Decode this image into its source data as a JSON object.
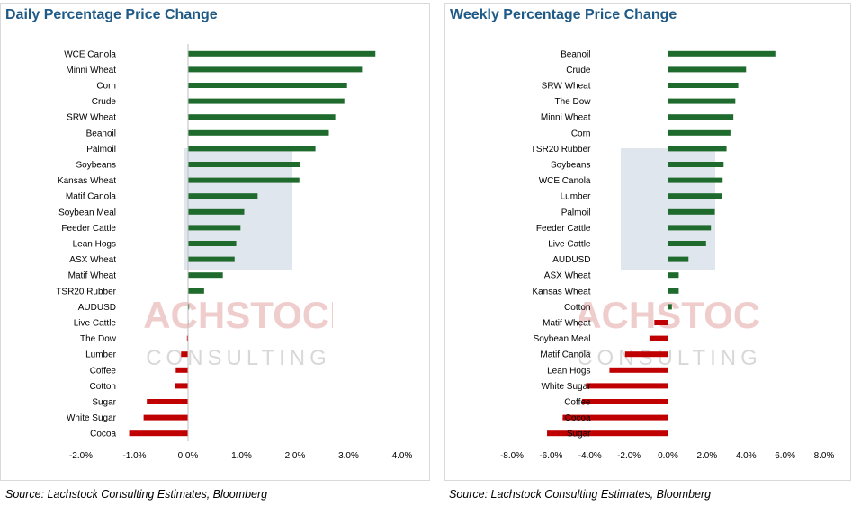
{
  "colors": {
    "positive": "#1e6b2d",
    "negative": "#c00000",
    "title": "#1f5a86",
    "gridline": "#d9d9d9",
    "watermark": "#e9b8b8",
    "watermark_logo": "#c7d1df"
  },
  "watermark": {
    "word1": "LACHSTOCK",
    "word2": "CONSULTING"
  },
  "chart_data": [
    {
      "type": "bar",
      "orientation": "horizontal",
      "title": "Daily Percentage Price Change",
      "source": "Source: Lachstock Consulting Estimates, Bloomberg",
      "categories": [
        "WCE Canola",
        "Minni Wheat",
        "Corn",
        "Crude",
        "SRW Wheat",
        "Beanoil",
        "Palmoil",
        "Soybeans",
        "Kansas Wheat",
        "Matif Canola",
        "Soybean Meal",
        "Feeder Cattle",
        "Lean Hogs",
        "ASX Wheat",
        "Matif Wheat",
        "TSR20 Rubber",
        "AUDUSD",
        "Live Cattle",
        "The Dow",
        "Lumber",
        "Coffee",
        "Cotton",
        "Sugar",
        "White Sugar",
        "Cocoa"
      ],
      "values": [
        3.5,
        3.25,
        2.97,
        2.92,
        2.75,
        2.63,
        2.38,
        2.1,
        2.08,
        1.3,
        1.05,
        0.98,
        0.9,
        0.87,
        0.65,
        0.3,
        0.02,
        0.0,
        -0.02,
        -0.13,
        -0.23,
        -0.25,
        -0.77,
        -0.83,
        -1.1
      ],
      "xlim": [
        -2.0,
        4.0
      ],
      "xticks": [
        "-2.0%",
        "-1.0%",
        "0.0%",
        "1.0%",
        "2.0%",
        "3.0%",
        "4.0%"
      ],
      "grid": false,
      "legend": "none"
    },
    {
      "type": "bar",
      "orientation": "horizontal",
      "title": "Weekly Percentage Price Change",
      "source": "Source: Lachstock Consulting Estimates, Bloomberg",
      "categories": [
        "Beanoil",
        "Crude",
        "SRW Wheat",
        "The Dow",
        "Minni Wheat",
        "Corn",
        "TSR20 Rubber",
        "Soybeans",
        "WCE Canola",
        "Lumber",
        "Palmoil",
        "Feeder Cattle",
        "Live Cattle",
        "AUDUSD",
        "ASX Wheat",
        "Kansas Wheat",
        "Cotton",
        "Matif Wheat",
        "Soybean Meal",
        "Matif Canola",
        "Lean Hogs",
        "White Sugar",
        "Coffee",
        "Cocoa",
        "Sugar"
      ],
      "values": [
        5.5,
        4.0,
        3.6,
        3.45,
        3.35,
        3.2,
        3.0,
        2.85,
        2.8,
        2.75,
        2.4,
        2.2,
        1.95,
        1.05,
        0.55,
        0.55,
        0.2,
        -0.7,
        -0.95,
        -2.2,
        -3.0,
        -4.2,
        -4.4,
        -5.4,
        -6.2
      ],
      "xlim": [
        -8.0,
        8.0
      ],
      "xticks": [
        "-8.0%",
        "-6.0%",
        "-4.0%",
        "-2.0%",
        "0.0%",
        "2.0%",
        "4.0%",
        "6.0%",
        "8.0%"
      ],
      "grid": false,
      "legend": "none"
    }
  ]
}
